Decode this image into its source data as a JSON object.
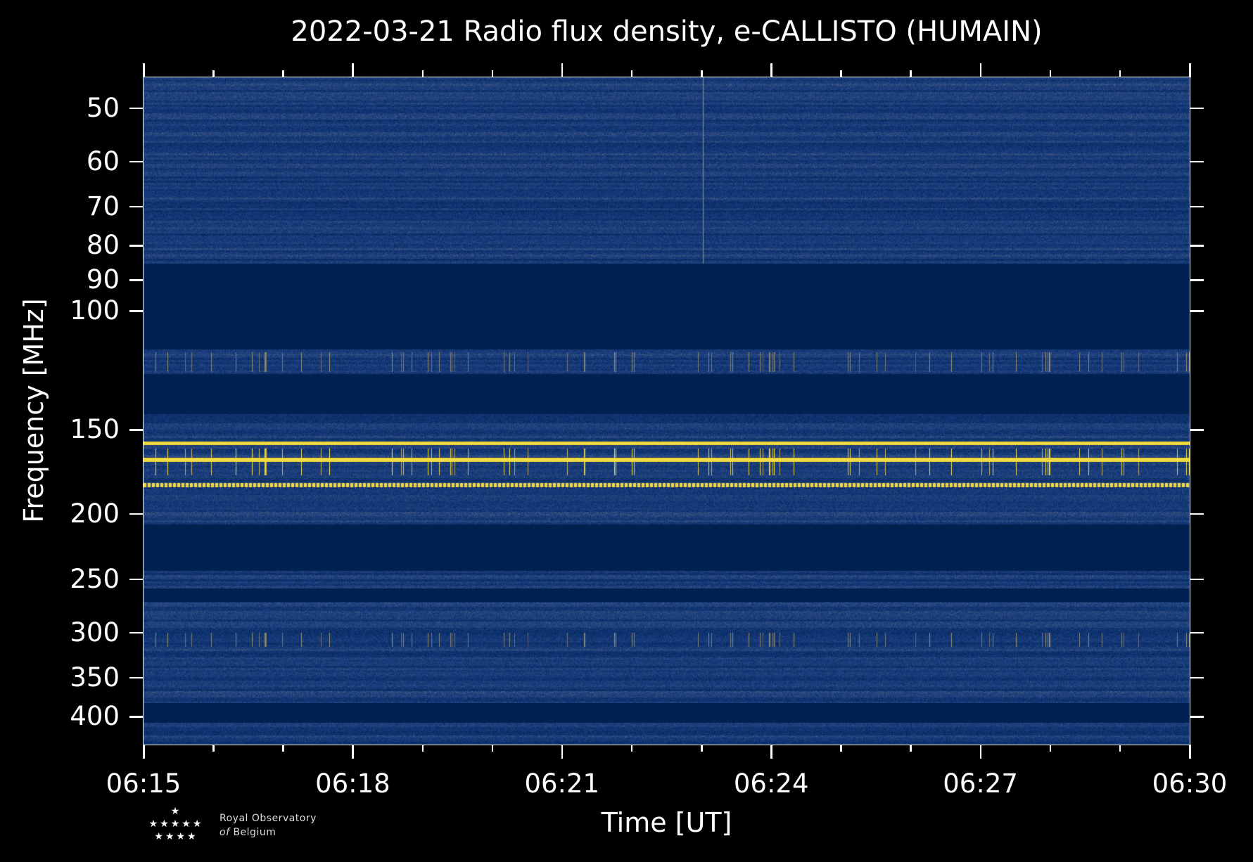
{
  "chart_data": {
    "type": "heatmap",
    "title": "2022-03-21 Radio flux density, e-CALLISTO (HUMAIN)",
    "xlabel": "Time [UT]",
    "ylabel": "Frequency [MHz]",
    "x_ticks": [
      "06:15",
      "06:18",
      "06:21",
      "06:24",
      "06:27",
      "06:30"
    ],
    "x_minor_tick_interval_minutes": 1,
    "xlim": [
      "06:15",
      "06:30"
    ],
    "y_scale": "log",
    "y_inverted": true,
    "ylim": [
      45,
      440
    ],
    "y_ticks": [
      50,
      60,
      70,
      80,
      90,
      100,
      150,
      200,
      250,
      300,
      350,
      400
    ],
    "colormap": "cividis",
    "colors": {
      "low": "#00214d",
      "mid": "#7a7a78",
      "high": "#fde838"
    },
    "no_signal_bands_mhz": [
      [
        85,
        114
      ],
      [
        124,
        142
      ],
      [
        207,
        243
      ],
      [
        258,
        270
      ],
      [
        381,
        408
      ]
    ],
    "strong_emission_lines_mhz": [
      157,
      166,
      181
    ],
    "intermittent_bursts_mhz": [
      [
        115,
        123
      ],
      [
        160,
        175
      ],
      [
        300,
        315
      ]
    ]
  },
  "logo": {
    "line1": "Royal Observatory",
    "line2_italic": "of",
    "line2": "Belgium",
    "stars": "★"
  }
}
